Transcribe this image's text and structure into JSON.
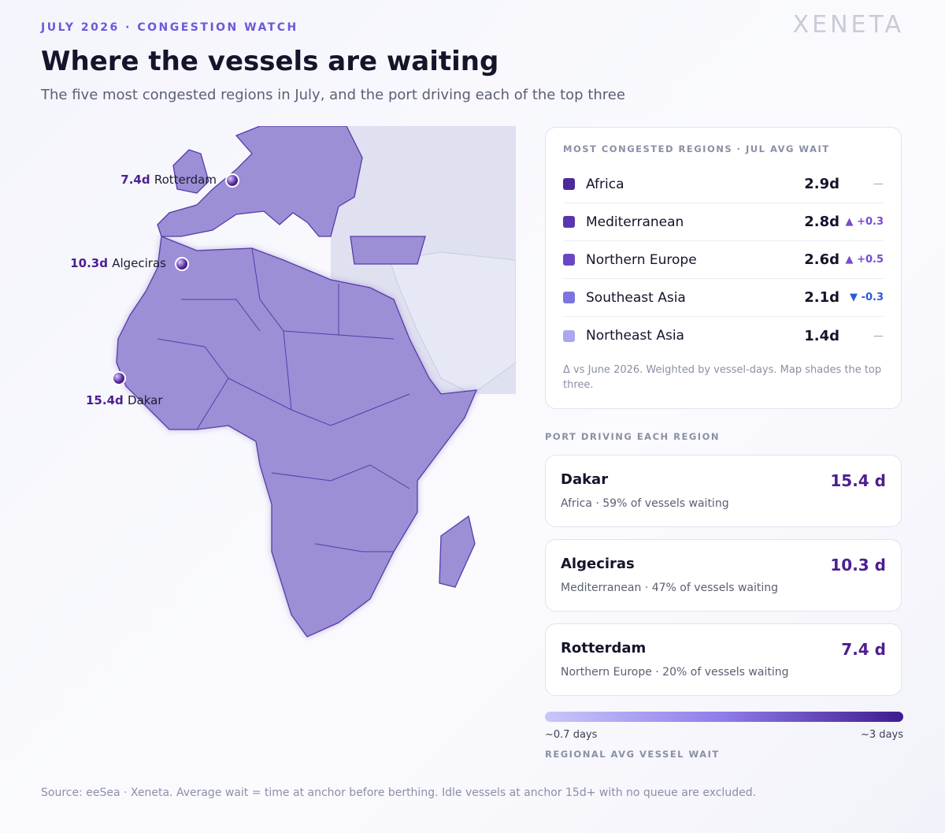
{
  "header": {
    "kicker": "JULY 2026 · CONGESTION WATCH",
    "logo": "XENETA",
    "title": "Where the vessels are waiting",
    "subtitle": "The five most congested regions in July, and the port driving each of the top three"
  },
  "map": {
    "pins": [
      {
        "value": "7.4d",
        "port": "Rotterdam"
      },
      {
        "value": "10.3d",
        "port": "Algeciras"
      },
      {
        "value": "15.4d",
        "port": "Dakar"
      }
    ]
  },
  "regions": {
    "heading": "MOST CONGESTED REGIONS · JUL AVG WAIT",
    "rows": [
      {
        "name": "Africa",
        "wait": "2.9d",
        "delta": "—",
        "color": "#4b2a9a"
      },
      {
        "name": "Mediterranean",
        "wait": "2.8d",
        "delta": "+0.3",
        "color": "#5a35b0"
      },
      {
        "name": "Northern Europe",
        "wait": "2.6d",
        "delta": "+0.5",
        "color": "#6a48c4"
      },
      {
        "name": "Southeast Asia",
        "wait": "2.1d",
        "delta": "-0.3",
        "color": "#7d74e0"
      },
      {
        "name": "Northeast Asia",
        "wait": "1.4d",
        "delta": "—",
        "color": "#a9a9f2"
      }
    ],
    "note": "Δ vs June 2026. Weighted by vessel-days. Map shades the top three."
  },
  "ports": {
    "heading": "PORT DRIVING EACH REGION",
    "cards": [
      {
        "name": "Dakar",
        "wait": "15.4 d",
        "detail": "Africa · 59% of vessels waiting"
      },
      {
        "name": "Algeciras",
        "wait": "10.3 d",
        "detail": "Mediterranean · 47% of vessels waiting"
      },
      {
        "name": "Rotterdam",
        "wait": "7.4 d",
        "detail": "Northern Europe · 20% of vessels waiting"
      }
    ]
  },
  "legend": {
    "min": "~0.7 days",
    "max": "~3 days",
    "label": "REGIONAL AVG VESSEL WAIT"
  },
  "footer": {
    "source": "Source: eeSea · Xeneta. Average wait = time at anchor before berthing. Idle vessels at anchor 15d+ with no queue are excluded."
  }
}
